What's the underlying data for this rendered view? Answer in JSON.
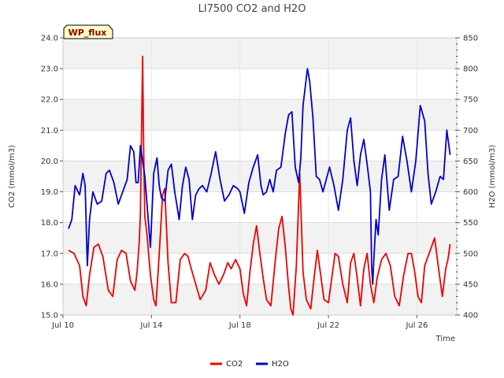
{
  "chart_data": {
    "type": "line",
    "title": "LI7500 CO2 and H2O",
    "badge": "WP_flux",
    "xlabel": "Time",
    "ylabel_left": "CO2 (mmol/m3)",
    "ylabel_right": "H2O (mmol/m3)",
    "x_tick_labels": [
      "Jul 10",
      "Jul 14",
      "Jul 18",
      "Jul 22",
      "Jul 26"
    ],
    "x_tick_days": [
      10,
      14,
      18,
      22,
      26
    ],
    "xlim": [
      10,
      27.8
    ],
    "ylim_left": [
      15.0,
      24.0
    ],
    "ylim_right": [
      400,
      850
    ],
    "y_left_ticks": [
      "15.0",
      "16.0",
      "17.0",
      "18.0",
      "19.0",
      "20.0",
      "21.0",
      "22.0",
      "23.0",
      "24.0"
    ],
    "y_right_ticks": [
      "400",
      "450",
      "500",
      "550",
      "600",
      "650",
      "700",
      "750",
      "800",
      "850"
    ],
    "grid": true,
    "legend_position": "bottom-center",
    "series": [
      {
        "name": "CO2",
        "axis": "left",
        "color": "#ee0000",
        "x": [
          10.25,
          10.5,
          10.75,
          10.9,
          11.05,
          11.2,
          11.4,
          11.6,
          11.8,
          12.05,
          12.25,
          12.45,
          12.65,
          12.85,
          13.05,
          13.25,
          13.35,
          13.45,
          13.5,
          13.55,
          13.6,
          13.65,
          13.7,
          13.8,
          13.95,
          14.1,
          14.2,
          14.3,
          14.4,
          14.5,
          14.6,
          14.75,
          14.9,
          15.1,
          15.3,
          15.5,
          15.65,
          15.8,
          16.0,
          16.2,
          16.45,
          16.65,
          16.85,
          17.05,
          17.25,
          17.45,
          17.6,
          17.8,
          18.0,
          18.15,
          18.3,
          18.45,
          18.6,
          18.75,
          18.9,
          19.05,
          19.2,
          19.4,
          19.6,
          19.75,
          19.9,
          20.05,
          20.2,
          20.3,
          20.4,
          20.55,
          20.7,
          20.85,
          21.0,
          21.2,
          21.35,
          21.5,
          21.65,
          21.8,
          22.0,
          22.15,
          22.3,
          22.45,
          22.65,
          22.85,
          23.0,
          23.15,
          23.3,
          23.45,
          23.6,
          23.75,
          23.9,
          24.05,
          24.2,
          24.4,
          24.6,
          24.8,
          25.0,
          25.2,
          25.4,
          25.6,
          25.75,
          25.9,
          26.05,
          26.2,
          26.35,
          26.5,
          26.65,
          26.8,
          27.0,
          27.15,
          27.3,
          27.4,
          27.5
        ],
        "values": [
          17.1,
          17.0,
          16.6,
          15.6,
          15.3,
          16.3,
          17.2,
          17.3,
          16.9,
          15.8,
          15.6,
          16.8,
          17.1,
          17.0,
          16.1,
          15.8,
          16.4,
          17.4,
          18.3,
          20.9,
          23.4,
          20.2,
          18.2,
          17.6,
          16.3,
          15.5,
          15.3,
          16.4,
          17.6,
          18.9,
          19.1,
          16.7,
          15.4,
          15.4,
          16.8,
          17.0,
          16.9,
          16.5,
          16.0,
          15.5,
          15.8,
          16.7,
          16.3,
          16.0,
          16.3,
          16.7,
          16.5,
          16.8,
          16.5,
          15.7,
          15.3,
          16.4,
          17.3,
          17.9,
          17.0,
          16.2,
          15.5,
          15.3,
          16.8,
          17.8,
          18.2,
          17.2,
          15.9,
          15.2,
          15.0,
          16.6,
          19.6,
          16.4,
          15.5,
          15.2,
          16.2,
          17.1,
          16.3,
          15.5,
          15.4,
          16.2,
          17.0,
          16.9,
          16.0,
          15.4,
          16.7,
          17.0,
          16.2,
          15.3,
          16.5,
          17.0,
          16.0,
          15.4,
          16.2,
          16.8,
          17.0,
          16.6,
          15.6,
          15.3,
          16.3,
          17.0,
          17.0,
          16.4,
          15.6,
          15.4,
          16.6,
          16.9,
          17.2,
          17.5,
          16.4,
          15.6,
          16.5,
          16.8,
          17.3
        ]
      },
      {
        "name": "H2O",
        "axis": "right",
        "color": "#0000cc",
        "x": [
          10.25,
          10.4,
          10.55,
          10.75,
          10.9,
          11.0,
          11.1,
          11.2,
          11.35,
          11.55,
          11.75,
          11.95,
          12.1,
          12.3,
          12.5,
          12.7,
          12.9,
          13.05,
          13.2,
          13.3,
          13.4,
          13.5,
          13.6,
          13.7,
          13.8,
          13.95,
          14.1,
          14.25,
          14.35,
          14.45,
          14.6,
          14.75,
          14.9,
          15.05,
          15.25,
          15.4,
          15.55,
          15.7,
          15.85,
          16.0,
          16.15,
          16.3,
          16.5,
          16.7,
          16.9,
          17.1,
          17.3,
          17.5,
          17.7,
          17.9,
          18.0,
          18.2,
          18.4,
          18.6,
          18.8,
          18.95,
          19.05,
          19.2,
          19.35,
          19.5,
          19.65,
          19.85,
          20.05,
          20.2,
          20.35,
          20.5,
          20.65,
          20.75,
          20.85,
          20.95,
          21.05,
          21.15,
          21.3,
          21.45,
          21.6,
          21.75,
          21.9,
          22.05,
          22.25,
          22.45,
          22.65,
          22.85,
          23.0,
          23.15,
          23.3,
          23.45,
          23.6,
          23.75,
          23.9,
          23.95,
          24.0,
          24.05,
          24.15,
          24.25,
          24.4,
          24.55,
          24.75,
          24.95,
          25.15,
          25.35,
          25.55,
          25.75,
          25.95,
          26.15,
          26.35,
          26.5,
          26.65,
          26.85,
          27.05,
          27.2,
          27.35,
          27.5
        ],
        "values": [
          540,
          555,
          610,
          595,
          630,
          610,
          480,
          555,
          600,
          580,
          585,
          630,
          635,
          615,
          580,
          600,
          620,
          675,
          665,
          615,
          615,
          675,
          650,
          625,
          580,
          510,
          630,
          655,
          610,
          590,
          585,
          635,
          645,
          600,
          555,
          610,
          640,
          620,
          555,
          595,
          605,
          610,
          600,
          630,
          665,
          620,
          585,
          595,
          610,
          605,
          600,
          565,
          615,
          640,
          660,
          610,
          595,
          600,
          620,
          600,
          635,
          640,
          695,
          725,
          730,
          640,
          615,
          655,
          740,
          770,
          800,
          780,
          720,
          625,
          620,
          600,
          620,
          640,
          610,
          570,
          620,
          700,
          720,
          650,
          610,
          660,
          685,
          645,
          600,
          480,
          450,
          490,
          555,
          530,
          620,
          660,
          570,
          620,
          625,
          690,
          650,
          600,
          650,
          740,
          715,
          630,
          580,
          600,
          625,
          620,
          700,
          660
        ]
      }
    ]
  }
}
